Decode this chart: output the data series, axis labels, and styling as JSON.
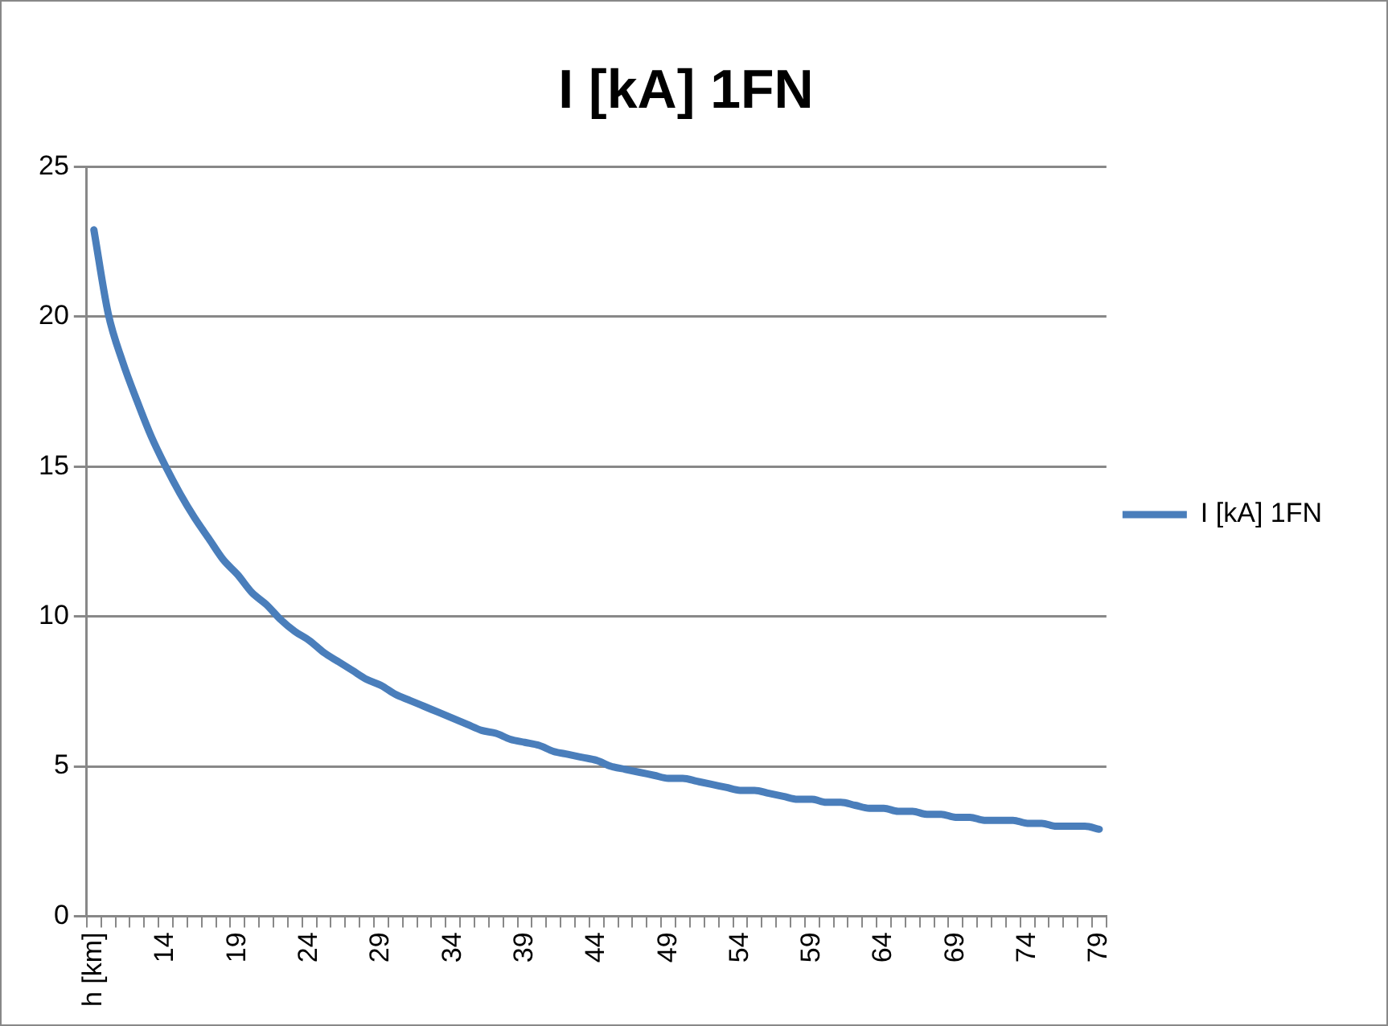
{
  "chart_data": {
    "type": "line",
    "title": "I [kA] 1FN",
    "categories": [
      "h [km]",
      null,
      null,
      null,
      null,
      "14",
      null,
      null,
      null,
      null,
      "19",
      null,
      null,
      null,
      null,
      "24",
      null,
      null,
      null,
      null,
      "29",
      null,
      null,
      null,
      null,
      "34",
      null,
      null,
      null,
      null,
      "39",
      null,
      null,
      null,
      null,
      "44",
      null,
      null,
      null,
      null,
      "49",
      null,
      null,
      null,
      null,
      "54",
      null,
      null,
      null,
      null,
      "59",
      null,
      null,
      null,
      null,
      "64",
      null,
      null,
      null,
      null,
      "69",
      null,
      null,
      null,
      null,
      "74",
      null,
      null,
      null,
      null,
      "79"
    ],
    "series": [
      {
        "name": "I [kA] 1FN",
        "color": "#4a7ebb",
        "values": [
          22.9,
          20.1,
          18.5,
          17.2,
          16.0,
          15.0,
          14.1,
          13.3,
          12.6,
          11.9,
          11.4,
          10.8,
          10.4,
          9.9,
          9.5,
          9.2,
          8.8,
          8.5,
          8.2,
          7.9,
          7.7,
          7.4,
          7.2,
          7.0,
          6.8,
          6.6,
          6.4,
          6.2,
          6.1,
          5.9,
          5.8,
          5.7,
          5.5,
          5.4,
          5.3,
          5.2,
          5.0,
          4.9,
          4.8,
          4.7,
          4.6,
          4.6,
          4.5,
          4.4,
          4.3,
          4.2,
          4.2,
          4.1,
          4.0,
          3.9,
          3.9,
          3.8,
          3.8,
          3.7,
          3.6,
          3.6,
          3.5,
          3.5,
          3.4,
          3.4,
          3.3,
          3.3,
          3.2,
          3.2,
          3.2,
          3.1,
          3.1,
          3.0,
          3.0,
          3.0,
          2.9
        ]
      }
    ],
    "ylim": [
      0,
      25
    ],
    "yticks": [
      0,
      5,
      10,
      15,
      20,
      25
    ],
    "grid": "y",
    "legend": "right",
    "marker": "none",
    "line_style": "solid"
  }
}
